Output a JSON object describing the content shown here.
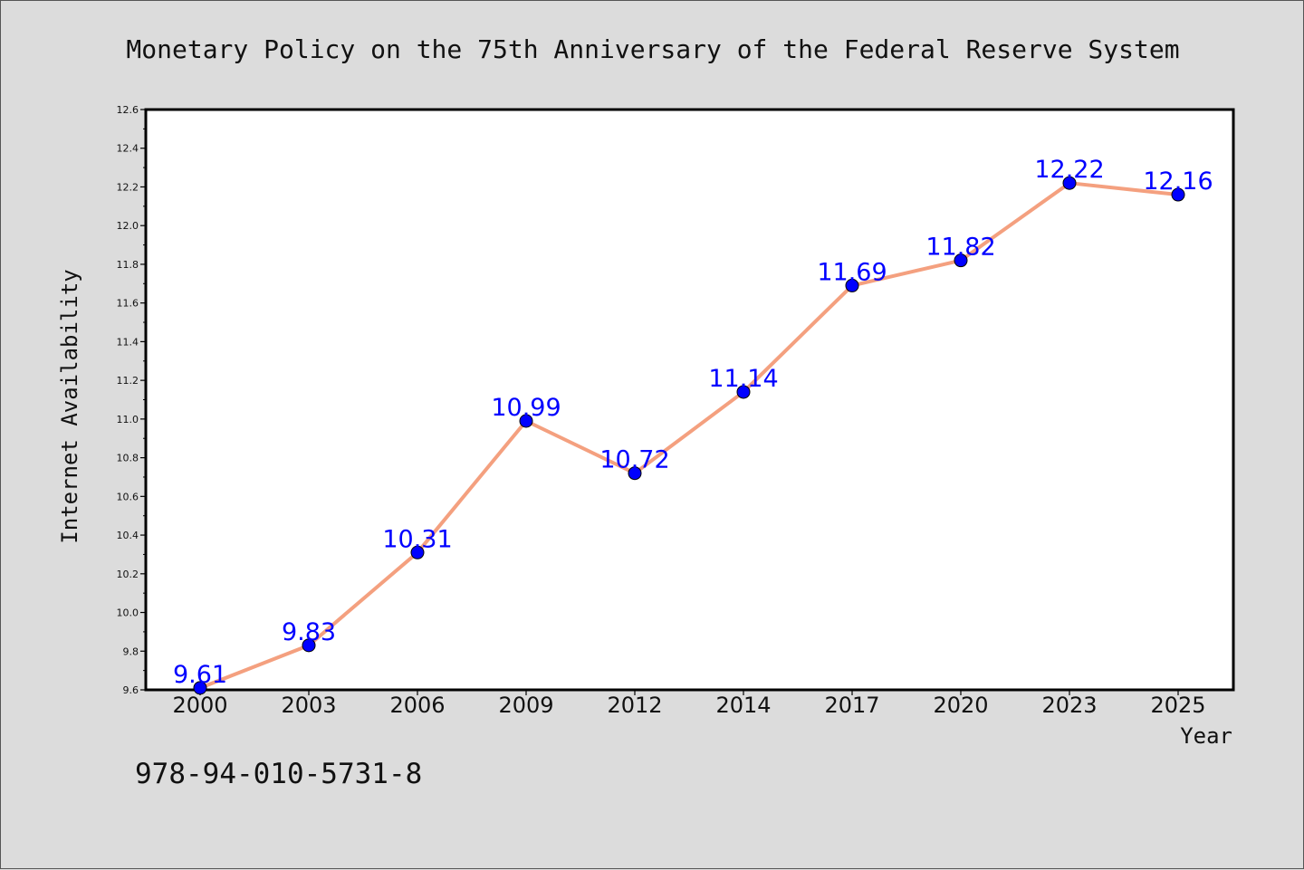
{
  "chart_data": {
    "type": "line",
    "title": "Monetary Policy on the 75th Anniversary of the Federal Reserve System",
    "xlabel": "Year",
    "ylabel": "Internet Availability",
    "categories": [
      "2000",
      "2003",
      "2006",
      "2009",
      "2012",
      "2014",
      "2017",
      "2020",
      "2023",
      "2025"
    ],
    "series": [
      {
        "values": [
          9.61,
          9.83,
          10.31,
          10.99,
          10.72,
          11.14,
          11.69,
          11.82,
          12.22,
          12.16
        ],
        "data_labels": [
          "9.61",
          "9.83",
          "10.31",
          "10.99",
          "10.72",
          "11.14",
          "11.69",
          "11.82",
          "12.22",
          "12.16"
        ]
      }
    ],
    "ylim": [
      9.6,
      12.6
    ],
    "yticks": [
      "9.6",
      "9.8",
      "10.0",
      "10.2",
      "10.4",
      "10.6",
      "10.8",
      "11.0",
      "11.2",
      "11.4",
      "11.6",
      "11.8",
      "12.0",
      "12.2",
      "12.4",
      "12.6"
    ],
    "grid": false,
    "line_color": "#f4a07f",
    "marker_color": "#0000ff",
    "label_color": "#0000ff"
  },
  "footer": {
    "isbn": "978-94-010-5731-8"
  }
}
